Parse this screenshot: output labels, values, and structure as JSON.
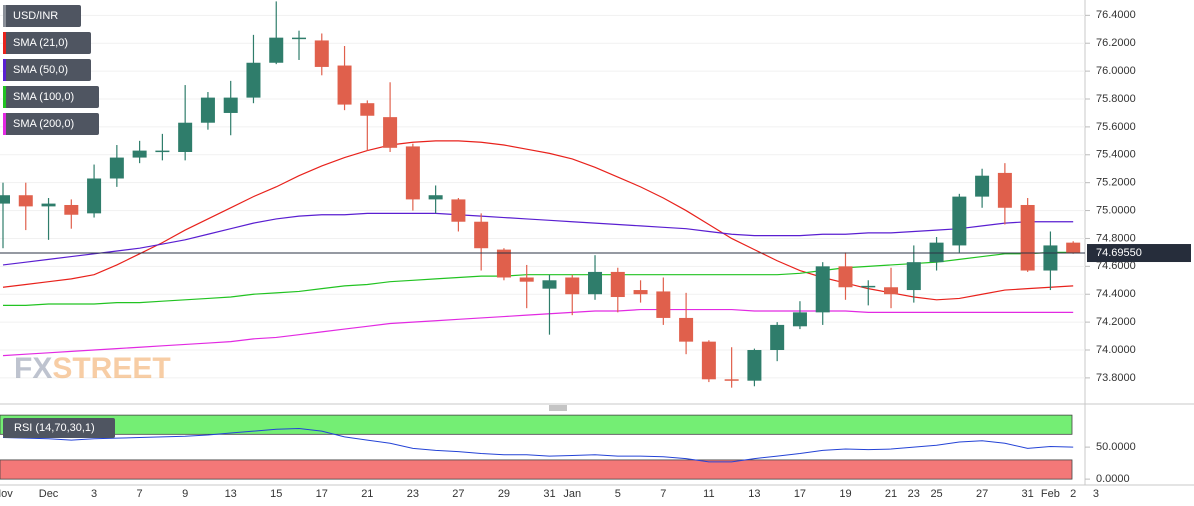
{
  "chart_data": [
    {
      "type": "candlestick",
      "title": "USD/INR",
      "categories": [
        "Nov",
        null,
        "Dec",
        null,
        "3",
        null,
        "7",
        null,
        "9",
        null,
        "13",
        null,
        "15",
        null,
        "17",
        null,
        "21",
        null,
        "23",
        null,
        "27",
        null,
        "29",
        null,
        "31",
        "Jan",
        null,
        "5",
        null,
        "7",
        null,
        "11",
        null,
        "13",
        null,
        "17",
        null,
        "19",
        null,
        "21",
        "23",
        "25",
        null,
        "27",
        null,
        "31",
        "Feb",
        "2",
        "3"
      ],
      "open": [
        75.05,
        75.11,
        75.03,
        75.04,
        74.98,
        75.23,
        75.38,
        75.42,
        75.42,
        75.63,
        75.7,
        75.81,
        76.06,
        76.23,
        76.22,
        76.04,
        75.77,
        75.67,
        75.46,
        75.08,
        75.08,
        74.92,
        74.72,
        74.52,
        74.44,
        74.52,
        74.4,
        74.56,
        74.43,
        74.42,
        74.23,
        74.06,
        73.79,
        73.78,
        74.0,
        74.17,
        74.27,
        74.6,
        74.45,
        74.45,
        74.43,
        74.63,
        74.75,
        75.1,
        75.27,
        75.04,
        74.57,
        74.77,
        null
      ],
      "high": [
        75.2,
        75.2,
        75.09,
        75.08,
        75.33,
        75.47,
        75.5,
        75.55,
        75.9,
        75.85,
        75.93,
        76.26,
        76.5,
        76.29,
        76.27,
        76.18,
        75.79,
        75.92,
        75.48,
        75.18,
        75.09,
        74.98,
        74.73,
        74.61,
        74.54,
        74.54,
        74.68,
        74.59,
        74.5,
        74.52,
        74.41,
        74.07,
        74.02,
        74.01,
        74.2,
        74.35,
        74.63,
        74.7,
        74.5,
        74.59,
        74.75,
        74.81,
        75.12,
        75.3,
        75.34,
        75.09,
        74.85,
        74.78,
        null
      ],
      "low": [
        74.73,
        74.86,
        74.79,
        74.87,
        74.95,
        75.17,
        75.34,
        75.36,
        75.36,
        75.58,
        75.54,
        75.77,
        76.05,
        76.08,
        75.97,
        75.72,
        75.43,
        75.42,
        75.0,
        74.98,
        74.85,
        74.57,
        74.5,
        74.3,
        74.11,
        74.25,
        74.36,
        74.27,
        74.34,
        74.18,
        73.97,
        73.77,
        73.73,
        73.74,
        73.92,
        74.15,
        74.18,
        74.36,
        74.32,
        74.3,
        74.34,
        74.57,
        74.7,
        75.02,
        74.9,
        74.56,
        74.43,
        74.69,
        null
      ],
      "close": [
        75.11,
        75.03,
        75.05,
        74.97,
        75.23,
        75.38,
        75.43,
        75.43,
        75.63,
        75.81,
        75.81,
        76.06,
        76.24,
        76.24,
        76.03,
        75.76,
        75.68,
        75.45,
        75.08,
        75.11,
        74.92,
        74.73,
        74.52,
        74.49,
        74.5,
        74.4,
        74.56,
        74.38,
        74.4,
        74.23,
        74.06,
        73.79,
        73.78,
        74.0,
        74.18,
        74.27,
        74.6,
        74.45,
        74.46,
        74.4,
        74.63,
        74.77,
        75.1,
        75.25,
        75.02,
        74.57,
        74.75,
        74.6955,
        null
      ],
      "last_label": "74.69550",
      "up_color": "#2f7d6b",
      "down_color": "#e0604c",
      "ylim": [
        73.62,
        76.51
      ],
      "yticks": [
        {
          "value": 73.8,
          "label": "73.8000"
        },
        {
          "value": 74.0,
          "label": "74.0000"
        },
        {
          "value": 74.2,
          "label": "74.2000"
        },
        {
          "value": 74.4,
          "label": "74.4000"
        },
        {
          "value": 74.6,
          "label": "74.6000"
        },
        {
          "value": 74.8,
          "label": "74.8000"
        },
        {
          "value": 75.0,
          "label": "75.0000"
        },
        {
          "value": 75.2,
          "label": "75.2000"
        },
        {
          "value": 75.4,
          "label": "75.4000"
        },
        {
          "value": 75.6,
          "label": "75.6000"
        },
        {
          "value": 75.8,
          "label": "75.8000"
        },
        {
          "value": 76.0,
          "label": "76.0000"
        },
        {
          "value": 76.2,
          "label": "76.2000"
        },
        {
          "value": 76.4,
          "label": "76.4000"
        }
      ],
      "grid": true,
      "watermark": [
        "FX",
        "STREET"
      ],
      "series": [
        {
          "name": "SMA (21,0)",
          "color": "#e8221c",
          "values": [
            74.45,
            74.47,
            74.49,
            74.51,
            74.54,
            74.61,
            74.69,
            74.77,
            74.86,
            74.94,
            75.02,
            75.1,
            75.17,
            75.25,
            75.32,
            75.38,
            75.43,
            75.47,
            75.49,
            75.5,
            75.5,
            75.49,
            75.47,
            75.44,
            75.41,
            75.37,
            75.31,
            75.24,
            75.17,
            75.09,
            75.0,
            74.9,
            74.8,
            74.72,
            74.64,
            74.57,
            74.52,
            74.48,
            74.44,
            74.41,
            74.38,
            74.36,
            74.37,
            74.4,
            74.43,
            74.44,
            74.45,
            74.46,
            null
          ]
        },
        {
          "name": "SMA (50,0)",
          "color": "#5a1fd1",
          "values": [
            74.61,
            74.63,
            74.65,
            74.67,
            74.69,
            74.71,
            74.73,
            74.76,
            74.79,
            74.83,
            74.87,
            74.91,
            74.94,
            74.96,
            74.97,
            74.97,
            74.98,
            74.98,
            74.98,
            74.98,
            74.97,
            74.96,
            74.95,
            74.94,
            74.93,
            74.92,
            74.91,
            74.9,
            74.89,
            74.88,
            74.87,
            74.85,
            74.83,
            74.82,
            74.82,
            74.82,
            74.83,
            74.83,
            74.84,
            74.84,
            74.85,
            74.86,
            74.87,
            74.89,
            74.91,
            74.92,
            74.92,
            74.92,
            null
          ]
        },
        {
          "name": "SMA (100,0)",
          "color": "#22c322",
          "values": [
            74.32,
            74.32,
            74.33,
            74.33,
            74.33,
            74.34,
            74.34,
            74.35,
            74.36,
            74.37,
            74.38,
            74.4,
            74.41,
            74.42,
            74.44,
            74.46,
            74.47,
            74.49,
            74.5,
            74.51,
            74.52,
            74.53,
            74.53,
            74.54,
            74.54,
            74.54,
            74.54,
            74.54,
            74.54,
            74.54,
            74.54,
            74.54,
            74.54,
            74.54,
            74.54,
            74.55,
            74.57,
            74.59,
            74.6,
            74.61,
            74.62,
            74.63,
            74.65,
            74.67,
            74.69,
            74.69,
            74.7,
            74.7,
            null
          ]
        },
        {
          "name": "SMA (200,0)",
          "color": "#e22ae2",
          "values": [
            73.96,
            73.97,
            73.98,
            73.99,
            74.0,
            74.01,
            74.02,
            74.03,
            74.04,
            74.05,
            74.06,
            74.08,
            74.09,
            74.11,
            74.13,
            74.15,
            74.17,
            74.19,
            74.2,
            74.21,
            74.22,
            74.23,
            74.24,
            74.25,
            74.26,
            74.27,
            74.28,
            74.28,
            74.29,
            74.29,
            74.29,
            74.29,
            74.29,
            74.28,
            74.28,
            74.28,
            74.28,
            74.28,
            74.27,
            74.27,
            74.27,
            74.27,
            74.27,
            74.27,
            74.27,
            74.27,
            74.27,
            74.27,
            null
          ]
        }
      ]
    },
    {
      "type": "line",
      "title": "RSI (14,70,30,1)",
      "color": "#2443d6",
      "values": [
        65,
        64,
        63,
        61,
        63,
        64,
        65,
        66,
        67,
        69,
        72,
        75,
        78,
        79,
        75,
        66,
        61,
        56,
        48,
        45,
        43,
        40,
        38,
        38,
        36,
        37,
        38,
        36,
        36,
        35,
        32,
        27,
        27,
        32,
        36,
        40,
        45,
        47,
        46,
        47,
        50,
        53,
        58,
        60,
        56,
        48,
        51,
        50,
        null
      ],
      "upper": 70,
      "lower": 30,
      "upper_color": "#74ee74",
      "lower_color": "#f47878",
      "ylim": [
        -17,
        108
      ],
      "yticks": [
        {
          "value": 0,
          "label": "0.0000"
        },
        {
          "value": 50,
          "label": "50.0000"
        }
      ]
    }
  ]
}
